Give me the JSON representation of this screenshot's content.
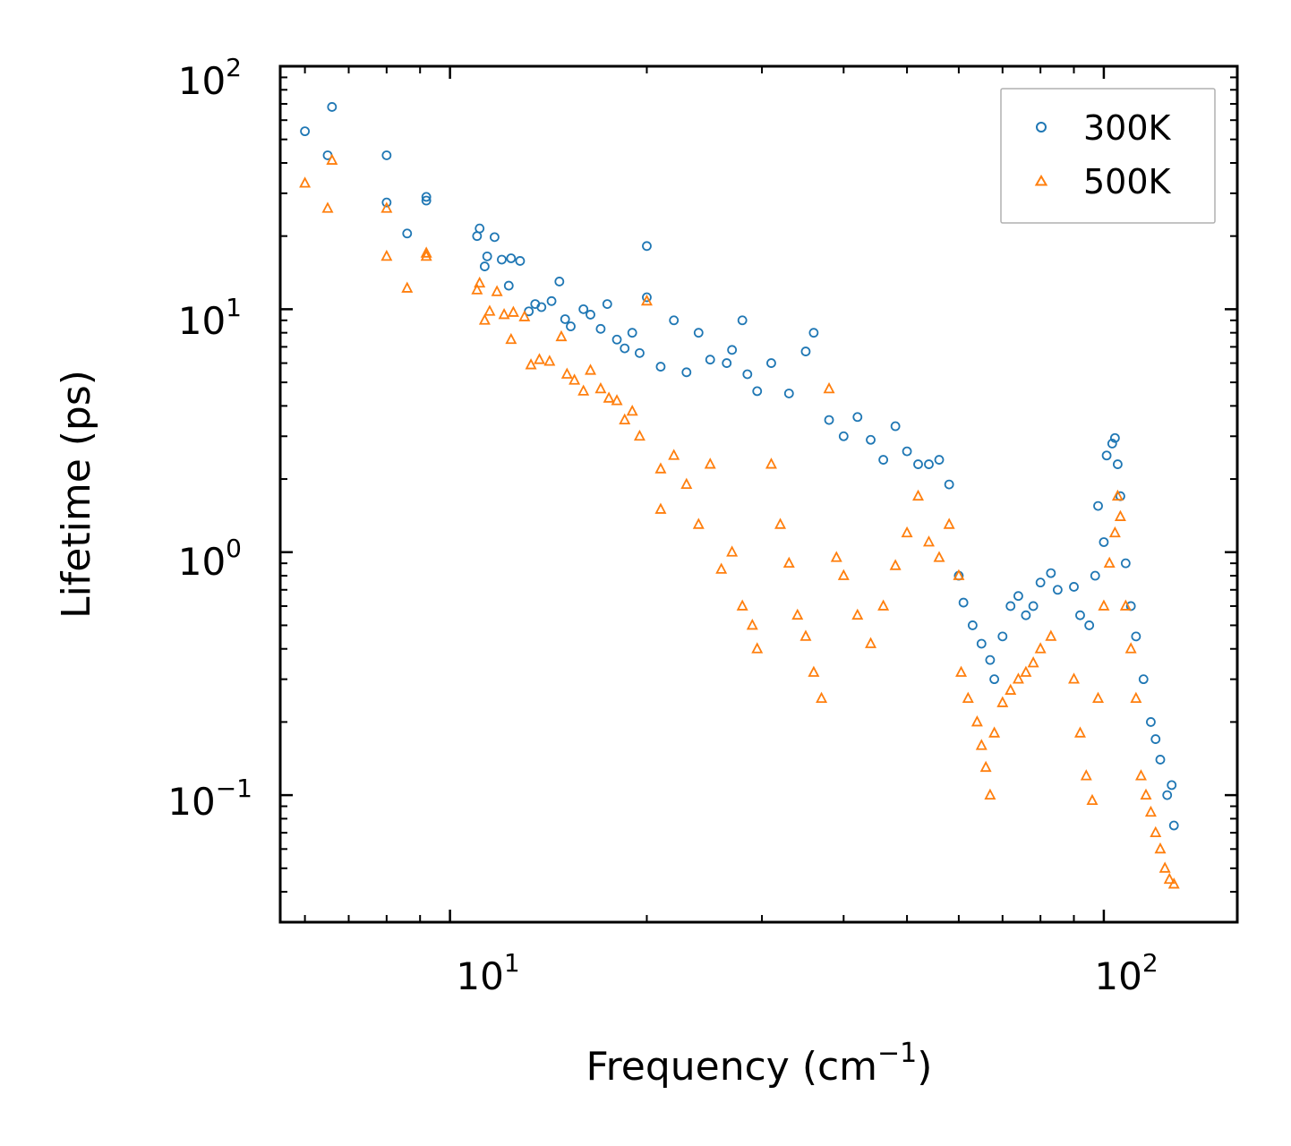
{
  "chart_data": {
    "type": "scatter",
    "title": "",
    "xlabel_text": "Frequency (cm",
    "xlabel_sup": "−1",
    "xlabel_close": ")",
    "ylabel": "Lifetime (ps)",
    "xscale": "log",
    "yscale": "log",
    "xlim": [
      5.5,
      160
    ],
    "ylim": [
      0.03,
      100
    ],
    "x_ticks": [
      {
        "base": "10",
        "exp": "1",
        "value": 10
      },
      {
        "base": "10",
        "exp": "2",
        "value": 100
      }
    ],
    "y_ticks": [
      {
        "base": "10",
        "exp": "2",
        "value": 100
      },
      {
        "base": "10",
        "exp": "1",
        "value": 10
      },
      {
        "base": "10",
        "exp": "0",
        "value": 1
      },
      {
        "base": "10",
        "exp": "−1",
        "value": 0.1
      }
    ],
    "legend_position": "top-right",
    "series": [
      {
        "name": "300K",
        "marker": "circle",
        "color": "#1f77b4",
        "points": [
          [
            6.0,
            54
          ],
          [
            6.5,
            43
          ],
          [
            6.6,
            68
          ],
          [
            8.0,
            43
          ],
          [
            8.0,
            27.5
          ],
          [
            8.6,
            20.5
          ],
          [
            9.2,
            29
          ],
          [
            9.2,
            28
          ],
          [
            11.0,
            20
          ],
          [
            11.1,
            21.5
          ],
          [
            11.3,
            15
          ],
          [
            11.4,
            16.5
          ],
          [
            11.7,
            19.8
          ],
          [
            12.0,
            16
          ],
          [
            12.3,
            12.5
          ],
          [
            12.4,
            16.2
          ],
          [
            12.8,
            15.8
          ],
          [
            13.2,
            9.8
          ],
          [
            13.5,
            10.5
          ],
          [
            13.8,
            10.2
          ],
          [
            14.3,
            10.8
          ],
          [
            14.7,
            13.0
          ],
          [
            15.0,
            9.1
          ],
          [
            15.3,
            8.5
          ],
          [
            16.0,
            10.0
          ],
          [
            16.4,
            9.5
          ],
          [
            17.0,
            8.3
          ],
          [
            17.4,
            10.5
          ],
          [
            18.0,
            7.5
          ],
          [
            18.5,
            6.9
          ],
          [
            19.0,
            8.0
          ],
          [
            19.5,
            6.6
          ],
          [
            20.0,
            18.2
          ],
          [
            20.0,
            11.2
          ],
          [
            21.0,
            5.8
          ],
          [
            22.0,
            9.0
          ],
          [
            23.0,
            5.5
          ],
          [
            24.0,
            8.0
          ],
          [
            25.0,
            6.2
          ],
          [
            26.5,
            6.0
          ],
          [
            27.0,
            6.8
          ],
          [
            28.0,
            9.0
          ],
          [
            28.5,
            5.4
          ],
          [
            29.5,
            4.6
          ],
          [
            31.0,
            6.0
          ],
          [
            33.0,
            4.5
          ],
          [
            35.0,
            6.7
          ],
          [
            36.0,
            8.0
          ],
          [
            38.0,
            3.5
          ],
          [
            40.0,
            3.0
          ],
          [
            42.0,
            3.6
          ],
          [
            44.0,
            2.9
          ],
          [
            46.0,
            2.4
          ],
          [
            48.0,
            3.3
          ],
          [
            50.0,
            2.6
          ],
          [
            52.0,
            2.3
          ],
          [
            54.0,
            2.3
          ],
          [
            56.0,
            2.4
          ],
          [
            58.0,
            1.9
          ],
          [
            60.0,
            0.8
          ],
          [
            61.0,
            0.62
          ],
          [
            63.0,
            0.5
          ],
          [
            65.0,
            0.42
          ],
          [
            67.0,
            0.36
          ],
          [
            68.0,
            0.3
          ],
          [
            70.0,
            0.45
          ],
          [
            72.0,
            0.6
          ],
          [
            74.0,
            0.66
          ],
          [
            76.0,
            0.55
          ],
          [
            78.0,
            0.6
          ],
          [
            80.0,
            0.75
          ],
          [
            83.0,
            0.82
          ],
          [
            85.0,
            0.7
          ],
          [
            90.0,
            0.72
          ],
          [
            92.0,
            0.55
          ],
          [
            95.0,
            0.5
          ],
          [
            97.0,
            0.8
          ],
          [
            98.0,
            1.55
          ],
          [
            100.0,
            1.1
          ],
          [
            101.0,
            2.5
          ],
          [
            103.0,
            2.8
          ],
          [
            104.0,
            2.95
          ],
          [
            105.0,
            2.3
          ],
          [
            106.0,
            1.7
          ],
          [
            108.0,
            0.9
          ],
          [
            110.0,
            0.6
          ],
          [
            112.0,
            0.45
          ],
          [
            115.0,
            0.3
          ],
          [
            118.0,
            0.2
          ],
          [
            120.0,
            0.17
          ],
          [
            122.0,
            0.14
          ],
          [
            125.0,
            0.1
          ],
          [
            127.0,
            0.11
          ],
          [
            128.0,
            0.075
          ]
        ]
      },
      {
        "name": "500K",
        "marker": "triangle",
        "color": "#ff7f0e",
        "points": [
          [
            6.0,
            33
          ],
          [
            6.5,
            26
          ],
          [
            6.6,
            41
          ],
          [
            8.0,
            26
          ],
          [
            8.0,
            16.5
          ],
          [
            8.6,
            12.2
          ],
          [
            9.2,
            17
          ],
          [
            9.2,
            16.5
          ],
          [
            11.0,
            12
          ],
          [
            11.1,
            12.8
          ],
          [
            11.3,
            9.0
          ],
          [
            11.5,
            9.8
          ],
          [
            11.8,
            11.8
          ],
          [
            12.1,
            9.5
          ],
          [
            12.4,
            7.5
          ],
          [
            12.5,
            9.7
          ],
          [
            13.0,
            9.3
          ],
          [
            13.3,
            5.9
          ],
          [
            13.7,
            6.2
          ],
          [
            14.2,
            6.1
          ],
          [
            14.8,
            7.7
          ],
          [
            15.1,
            5.4
          ],
          [
            15.5,
            5.1
          ],
          [
            16.0,
            4.6
          ],
          [
            16.4,
            5.6
          ],
          [
            17.0,
            4.7
          ],
          [
            17.5,
            4.3
          ],
          [
            18.0,
            4.2
          ],
          [
            18.5,
            3.5
          ],
          [
            19.0,
            3.8
          ],
          [
            19.5,
            3.0
          ],
          [
            20.0,
            10.8
          ],
          [
            21.0,
            2.2
          ],
          [
            21.0,
            1.5
          ],
          [
            22.0,
            2.5
          ],
          [
            23.0,
            1.9
          ],
          [
            24.0,
            1.3
          ],
          [
            25.0,
            2.3
          ],
          [
            26.0,
            0.85
          ],
          [
            27.0,
            1.0
          ],
          [
            28.0,
            0.6
          ],
          [
            29.0,
            0.5
          ],
          [
            29.5,
            0.4
          ],
          [
            31.0,
            2.3
          ],
          [
            32.0,
            1.3
          ],
          [
            33.0,
            0.9
          ],
          [
            34.0,
            0.55
          ],
          [
            35.0,
            0.45
          ],
          [
            36.0,
            0.32
          ],
          [
            37.0,
            0.25
          ],
          [
            38.0,
            4.7
          ],
          [
            39.0,
            0.95
          ],
          [
            40.0,
            0.8
          ],
          [
            42.0,
            0.55
          ],
          [
            44.0,
            0.42
          ],
          [
            46.0,
            0.6
          ],
          [
            48.0,
            0.88
          ],
          [
            50.0,
            1.2
          ],
          [
            52.0,
            1.7
          ],
          [
            54.0,
            1.1
          ],
          [
            56.0,
            0.95
          ],
          [
            58.0,
            1.3
          ],
          [
            60.0,
            0.8
          ],
          [
            60.5,
            0.32
          ],
          [
            62.0,
            0.25
          ],
          [
            64.0,
            0.2
          ],
          [
            65.0,
            0.16
          ],
          [
            66.0,
            0.13
          ],
          [
            67.0,
            0.1
          ],
          [
            68.0,
            0.18
          ],
          [
            70.0,
            0.24
          ],
          [
            72.0,
            0.27
          ],
          [
            74.0,
            0.3
          ],
          [
            76.0,
            0.32
          ],
          [
            78.0,
            0.35
          ],
          [
            80.0,
            0.4
          ],
          [
            83.0,
            0.45
          ],
          [
            90.0,
            0.3
          ],
          [
            92.0,
            0.18
          ],
          [
            94.0,
            0.12
          ],
          [
            96.0,
            0.095
          ],
          [
            98.0,
            0.25
          ],
          [
            100.0,
            0.6
          ],
          [
            102.0,
            0.9
          ],
          [
            104.0,
            1.2
          ],
          [
            105.0,
            1.7
          ],
          [
            106.0,
            1.4
          ],
          [
            108.0,
            0.6
          ],
          [
            110.0,
            0.4
          ],
          [
            112.0,
            0.25
          ],
          [
            114.0,
            0.12
          ],
          [
            116.0,
            0.1
          ],
          [
            118.0,
            0.085
          ],
          [
            120.0,
            0.07
          ],
          [
            122.0,
            0.06
          ],
          [
            124.0,
            0.05
          ],
          [
            126.0,
            0.045
          ],
          [
            128.0,
            0.043
          ]
        ]
      }
    ]
  }
}
